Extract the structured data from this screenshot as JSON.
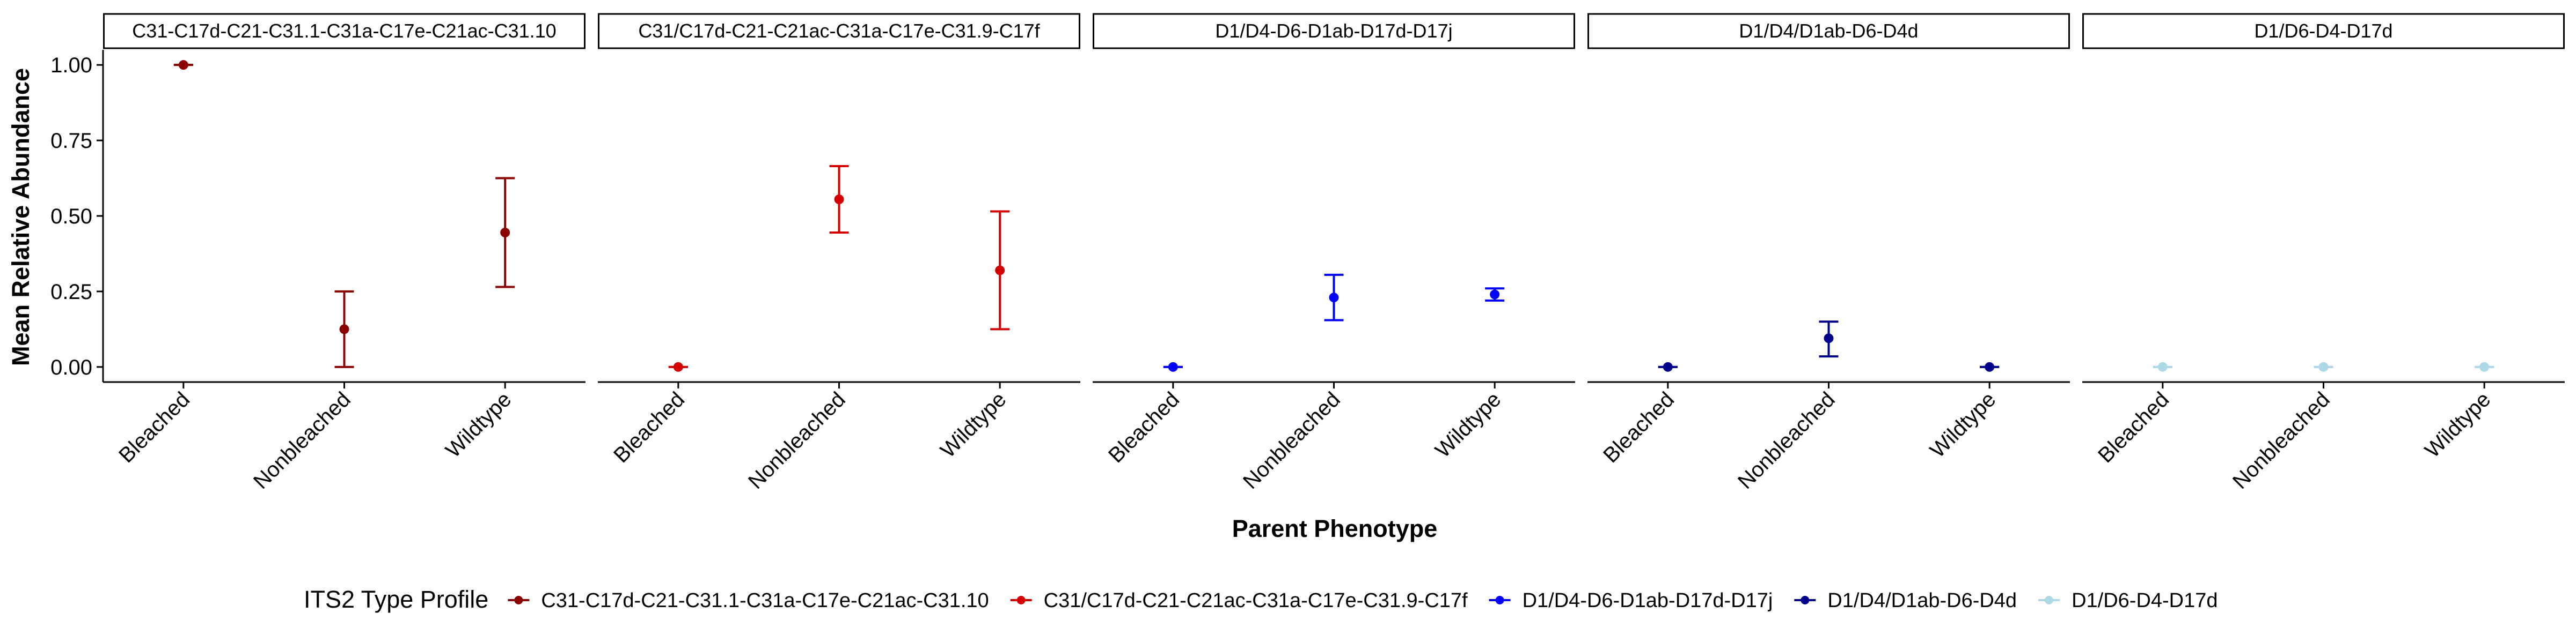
{
  "chart_data": {
    "type": "scatter",
    "ylabel": "Mean Relative Abundance",
    "xlabel": "Parent Phenotype",
    "categories": [
      "Bleached",
      "Nonbleached",
      "Wildtype"
    ],
    "ylim": [
      -0.05,
      1.05
    ],
    "yticks": [
      "0.00",
      "0.25",
      "0.50",
      "0.75",
      "1.00"
    ],
    "ytick_values": [
      0,
      0.25,
      0.5,
      0.75,
      1.0
    ],
    "grid": false,
    "legend": {
      "title": "ITS2 Type Profile",
      "position": "bottom",
      "items": [
        "C31-C17d-C21-C31.1-C31a-C17e-C21ac-C31.10",
        "C31/C17d-C21-C21ac-C31a-C17e-C31.9-C17f",
        "D1/D4-D6-D1ab-D17d-D17j",
        "D1/D4/D1ab-D6-D4d",
        "D1/D6-D4-D17d"
      ]
    },
    "facets": [
      {
        "title": "C31-C17d-C21-C31.1-C31a-C17e-C21ac-C31.10",
        "color": "#8B0000",
        "points": [
          {
            "x": "Bleached",
            "mean": 1.0,
            "lower": 1.0,
            "upper": 1.0
          },
          {
            "x": "Nonbleached",
            "mean": 0.125,
            "lower": 0.0,
            "upper": 0.25
          },
          {
            "x": "Wildtype",
            "mean": 0.445,
            "lower": 0.265,
            "upper": 0.625
          }
        ]
      },
      {
        "title": "C31/C17d-C21-C21ac-C31a-C17e-C31.9-C17f",
        "color": "#D40000",
        "points": [
          {
            "x": "Bleached",
            "mean": 0.0,
            "lower": 0.0,
            "upper": 0.0
          },
          {
            "x": "Nonbleached",
            "mean": 0.555,
            "lower": 0.445,
            "upper": 0.665
          },
          {
            "x": "Wildtype",
            "mean": 0.32,
            "lower": 0.125,
            "upper": 0.515
          }
        ]
      },
      {
        "title": "D1/D4-D6-D1ab-D17d-D17j",
        "color": "#0000FF",
        "points": [
          {
            "x": "Bleached",
            "mean": 0.0,
            "lower": 0.0,
            "upper": 0.0
          },
          {
            "x": "Nonbleached",
            "mean": 0.23,
            "lower": 0.155,
            "upper": 0.305
          },
          {
            "x": "Wildtype",
            "mean": 0.24,
            "lower": 0.22,
            "upper": 0.26
          }
        ]
      },
      {
        "title": "D1/D4/D1ab-D6-D4d",
        "color": "#00008B",
        "points": [
          {
            "x": "Bleached",
            "mean": 0.0,
            "lower": 0.0,
            "upper": 0.0
          },
          {
            "x": "Nonbleached",
            "mean": 0.095,
            "lower": 0.035,
            "upper": 0.15
          },
          {
            "x": "Wildtype",
            "mean": 0.0,
            "lower": 0.0,
            "upper": 0.0
          }
        ]
      },
      {
        "title": "D1/D6-D4-D17d",
        "color": "#ADD8E6",
        "points": [
          {
            "x": "Bleached",
            "mean": 0.0,
            "lower": 0.0,
            "upper": 0.0
          },
          {
            "x": "Nonbleached",
            "mean": 0.0,
            "lower": 0.0,
            "upper": 0.0
          },
          {
            "x": "Wildtype",
            "mean": 0.0,
            "lower": 0.0,
            "upper": 0.0
          }
        ]
      }
    ]
  }
}
